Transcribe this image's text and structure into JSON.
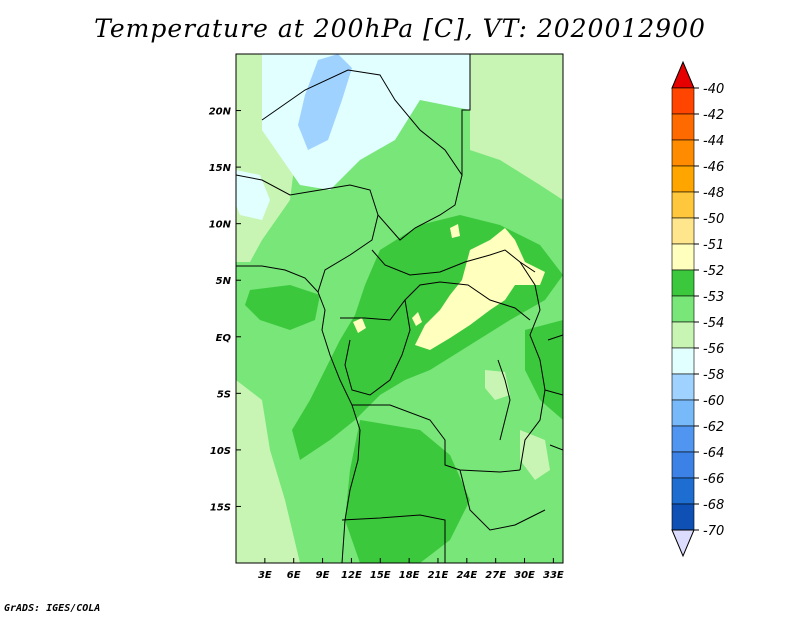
{
  "title": "Temperature at 200hPa [C], VT: 2020012900",
  "credit": "GrADS: IGES/COLA",
  "map": {
    "lon_range": [
      0,
      34
    ],
    "lat_range": [
      -20,
      25
    ],
    "lat_ticks": [
      {
        "value": 20,
        "label": "20N"
      },
      {
        "value": 15,
        "label": "15N"
      },
      {
        "value": 10,
        "label": "10N"
      },
      {
        "value": 5,
        "label": "5N"
      },
      {
        "value": 0,
        "label": "EQ"
      },
      {
        "value": -5,
        "label": "5S"
      },
      {
        "value": -10,
        "label": "10S"
      },
      {
        "value": -15,
        "label": "15S"
      }
    ],
    "lon_ticks": [
      {
        "value": 3,
        "label": "3E"
      },
      {
        "value": 6,
        "label": "6E"
      },
      {
        "value": 9,
        "label": "9E"
      },
      {
        "value": 12,
        "label": "12E"
      },
      {
        "value": 15,
        "label": "15E"
      },
      {
        "value": 18,
        "label": "18E"
      },
      {
        "value": 21,
        "label": "21E"
      },
      {
        "value": 24,
        "label": "24E"
      },
      {
        "value": 27,
        "label": "27E"
      },
      {
        "value": 30,
        "label": "30E"
      },
      {
        "value": 33,
        "label": "33E"
      }
    ]
  },
  "colorbar": {
    "levels": [
      {
        "label": "-40",
        "color": "#ff4500"
      },
      {
        "label": "-42",
        "color": "#ff6a00"
      },
      {
        "label": "-44",
        "color": "#ff8c00"
      },
      {
        "label": "-46",
        "color": "#ffa500"
      },
      {
        "label": "-48",
        "color": "#ffc83c"
      },
      {
        "label": "-50",
        "color": "#ffe68c"
      },
      {
        "label": "-51",
        "color": "#ffffbe"
      },
      {
        "label": "-52",
        "color": "#3cc83c"
      },
      {
        "label": "-53",
        "color": "#78e678"
      },
      {
        "label": "-54",
        "color": "#c8f5b4"
      },
      {
        "label": "-56",
        "color": "#e1ffff"
      },
      {
        "label": "-58",
        "color": "#a0d2ff"
      },
      {
        "label": "-60",
        "color": "#78b9fa"
      },
      {
        "label": "-62",
        "color": "#5096f0"
      },
      {
        "label": "-64",
        "color": "#3c82e6"
      },
      {
        "label": "-66",
        "color": "#1e6ed2"
      },
      {
        "label": "-68",
        "color": "#0f50b4"
      },
      {
        "label": "-70",
        "color": "#0a2d96"
      }
    ],
    "top_color": "#e60000",
    "bottom_color": "#dcdcff",
    "deep_color": "#000080"
  },
  "field_colors": {
    "c51": "#ffffbe",
    "c52": "#3cc83c",
    "c53": "#78e678",
    "c54": "#c8f5b4",
    "c56": "#e1ffff",
    "c58": "#a0d2ff"
  }
}
